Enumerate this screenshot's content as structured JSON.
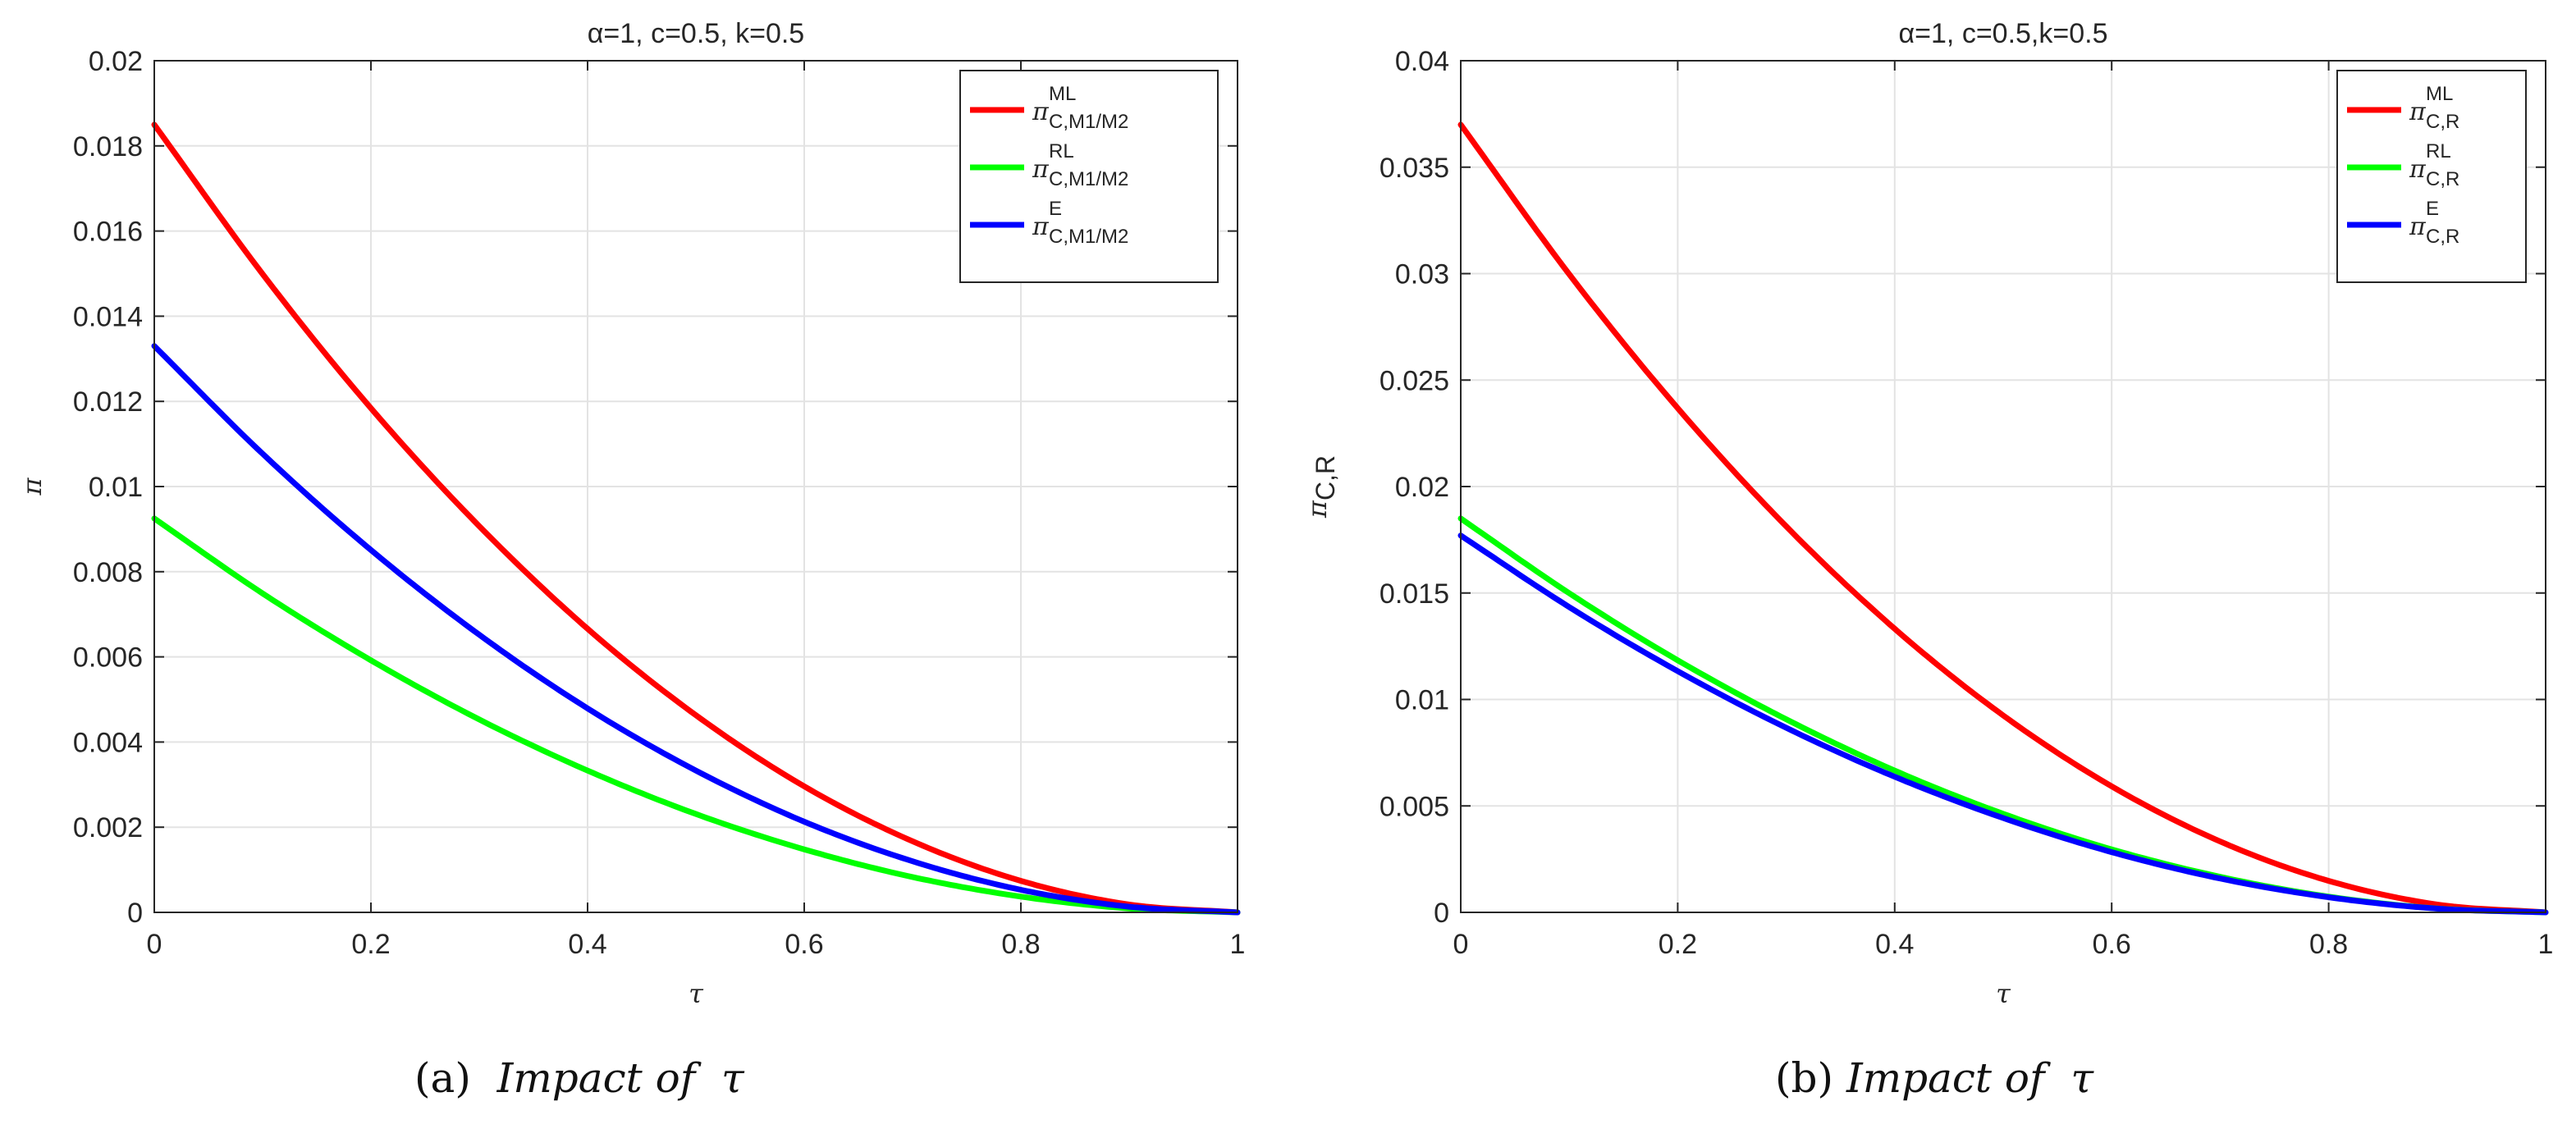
{
  "chart_data": [
    {
      "type": "line",
      "title": "α=1, c=0.5, k=0.5",
      "xlabel": "τ",
      "ylabel": "π",
      "xlim": [
        0,
        1
      ],
      "ylim": [
        0,
        0.02
      ],
      "xticks": [
        0,
        0.2,
        0.4,
        0.6,
        0.8,
        1
      ],
      "xtick_labels": [
        "0",
        "0.2",
        "0.4",
        "0.6",
        "0.8",
        "1"
      ],
      "yticks": [
        0,
        0.002,
        0.004,
        0.006,
        0.008,
        0.01,
        0.012,
        0.014,
        0.016,
        0.018,
        0.02
      ],
      "ytick_labels": [
        "0",
        "0.002",
        "0.004",
        "0.006",
        "0.008",
        "0.01",
        "0.012",
        "0.014",
        "0.016",
        "0.018",
        "0.02"
      ],
      "grid": true,
      "legend_position": "top-right",
      "x": [
        0,
        0.1,
        0.2,
        0.3,
        0.4,
        0.5,
        0.6,
        0.7,
        0.8,
        0.9,
        1.0
      ],
      "series": [
        {
          "name": "π^{ML}_{C,M1/M2}",
          "base": "π",
          "sup": "ML",
          "sub": "C,M1/M2",
          "color": "#ff0000",
          "values": [
            0.0185,
            0.01499,
            0.01184,
            0.00907,
            0.00666,
            0.00463,
            0.00296,
            0.00167,
            0.00074,
            0.000185,
            0.0
          ]
        },
        {
          "name": "π^{RL}_{C,M1/M2}",
          "base": "π",
          "sup": "RL",
          "sub": "C,M1/M2",
          "color": "#00ff00",
          "values": [
            0.00925,
            0.00749,
            0.00592,
            0.00453,
            0.00333,
            0.00231,
            0.00148,
            0.00083,
            0.00037,
            9.25e-05,
            0.0
          ]
        },
        {
          "name": "π^{E}_{C,M1/M2}",
          "base": "π",
          "sup": "E",
          "sub": "C,M1/M2",
          "color": "#0000ff",
          "values": [
            0.0133,
            0.01077,
            0.00851,
            0.00652,
            0.00479,
            0.00333,
            0.00213,
            0.0012,
            0.00053,
            0.000133,
            0.0
          ]
        }
      ]
    },
    {
      "type": "line",
      "title": "α=1, c=0.5,k=0.5",
      "xlabel": "τ",
      "ylabel": "π_{C,R}",
      "ylabel_base": "π",
      "ylabel_sub": "C,R",
      "xlim": [
        0,
        1
      ],
      "ylim": [
        0,
        0.04
      ],
      "xticks": [
        0,
        0.2,
        0.4,
        0.6,
        0.8,
        1
      ],
      "xtick_labels": [
        "0",
        "0.2",
        "0.4",
        "0.6",
        "0.8",
        "1"
      ],
      "yticks": [
        0,
        0.005,
        0.01,
        0.015,
        0.02,
        0.025,
        0.03,
        0.035,
        0.04
      ],
      "ytick_labels": [
        "0",
        "0.005",
        "0.01",
        "0.015",
        "0.02",
        "0.025",
        "0.03",
        "0.035",
        "0.04"
      ],
      "grid": true,
      "legend_position": "top-right",
      "x": [
        0,
        0.1,
        0.2,
        0.3,
        0.4,
        0.5,
        0.6,
        0.7,
        0.8,
        0.9,
        1.0
      ],
      "series": [
        {
          "name": "π^{ML}_{C,R}",
          "base": "π",
          "sup": "ML",
          "sub": "C,R",
          "color": "#ff0000",
          "values": [
            0.037,
            0.02997,
            0.02368,
            0.01813,
            0.01332,
            0.00925,
            0.00592,
            0.00333,
            0.00148,
            0.00037,
            0.0
          ]
        },
        {
          "name": "π^{RL}_{C,R}",
          "base": "π",
          "sup": "RL",
          "sub": "C,R",
          "color": "#00ff00",
          "values": [
            0.0185,
            0.01499,
            0.01184,
            0.00907,
            0.00666,
            0.00463,
            0.00296,
            0.00167,
            0.00074,
            0.000185,
            0.0
          ]
        },
        {
          "name": "π^{E}_{C,R}",
          "base": "π",
          "sup": "E",
          "sub": "C,R",
          "color": "#0000ff",
          "values": [
            0.0177,
            0.01434,
            0.01133,
            0.00867,
            0.00637,
            0.00443,
            0.00283,
            0.00159,
            0.00071,
            0.000177,
            0.0
          ]
        }
      ]
    }
  ],
  "captions": [
    {
      "prefix": "(a)",
      "italic": "Impact of",
      "symbol": "τ"
    },
    {
      "prefix": "(b)",
      "italic": "Impact of",
      "symbol": "τ"
    }
  ]
}
